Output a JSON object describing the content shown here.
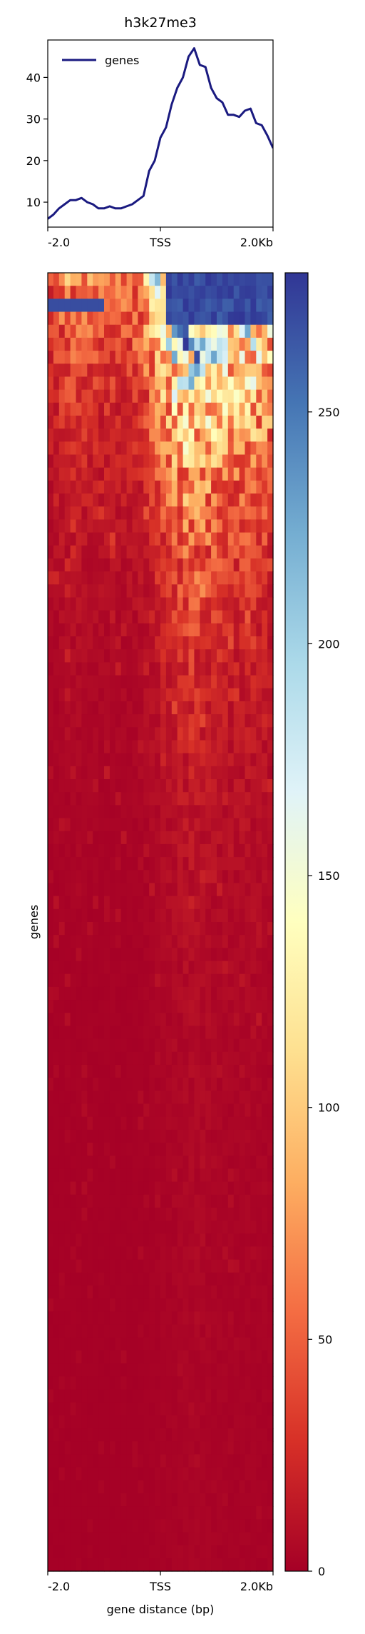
{
  "chart_data": [
    {
      "type": "line",
      "title": "h3k27me3",
      "xlabel": "",
      "ylabel": "",
      "x_ticks": [
        "-2.0",
        "TSS",
        "2.0Kb"
      ],
      "xlim": [
        -2000,
        2000
      ],
      "ylim": [
        4,
        49
      ],
      "y_ticks": [
        10,
        20,
        30,
        40
      ],
      "legend": "top-left",
      "series": [
        {
          "name": "genes",
          "color": "#1a1a80",
          "x": [
            -2000,
            -1900,
            -1800,
            -1700,
            -1600,
            -1500,
            -1400,
            -1300,
            -1200,
            -1100,
            -1000,
            -900,
            -800,
            -700,
            -600,
            -500,
            -400,
            -300,
            -200,
            -100,
            0,
            100,
            200,
            300,
            400,
            500,
            600,
            700,
            800,
            900,
            1000,
            1100,
            1200,
            1300,
            1400,
            1500,
            1600,
            1700,
            1800,
            1900,
            2000
          ],
          "y": [
            6.0,
            7.0,
            8.5,
            9.5,
            10.5,
            10.5,
            11.0,
            10.0,
            9.5,
            8.5,
            8.5,
            9.0,
            8.5,
            8.5,
            9.0,
            9.5,
            10.5,
            11.5,
            17.5,
            20.0,
            25.5,
            28.0,
            33.5,
            37.5,
            40.0,
            45.0,
            47.0,
            43.0,
            42.5,
            37.5,
            35.0,
            34.0,
            31.0,
            31.0,
            30.5,
            32.0,
            32.5,
            29.0,
            28.5,
            26.0,
            23.0
          ]
        }
      ]
    },
    {
      "type": "heatmap",
      "xlabel": "gene distance (bp)",
      "ylabel": "genes",
      "x_ticks": [
        "-2.0",
        "TSS",
        "2.0Kb"
      ],
      "colorbar_ticks": [
        0,
        50,
        100,
        150,
        200,
        250
      ],
      "colorbar_range": [
        0,
        280
      ],
      "colormap": "RdYlBu",
      "colormap_stops": [
        "#a50026",
        "#d73027",
        "#f46d43",
        "#fdae61",
        "#fee090",
        "#ffffbf",
        "#e0f3f8",
        "#abd9e9",
        "#74add1",
        "#4575b4",
        "#313695"
      ],
      "n_bins": 40,
      "n_rows": 100
    }
  ]
}
